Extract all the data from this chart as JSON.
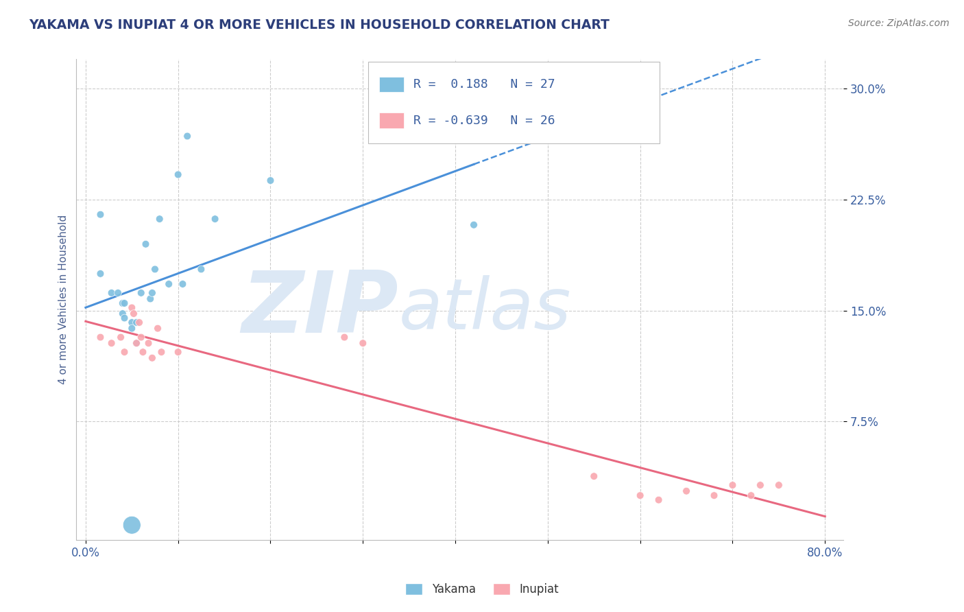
{
  "title": "YAKAMA VS INUPIAT 4 OR MORE VEHICLES IN HOUSEHOLD CORRELATION CHART",
  "source_text": "Source: ZipAtlas.com",
  "ylabel": "4 or more Vehicles in Household",
  "ytick_labels": [
    "7.5%",
    "15.0%",
    "22.5%",
    "30.0%"
  ],
  "ytick_values": [
    0.075,
    0.15,
    0.225,
    0.3
  ],
  "xlim": [
    -0.01,
    0.82
  ],
  "ylim": [
    -0.005,
    0.32
  ],
  "xmin": 0.0,
  "xmax": 0.8,
  "yakama_color": "#7fbfdf",
  "inupiat_color": "#f9a8b0",
  "yakama_line_color": "#4a90d9",
  "inupiat_line_color": "#e86880",
  "yakama_R": 0.188,
  "yakama_N": 27,
  "inupiat_R": -0.639,
  "inupiat_N": 26,
  "yakama_x": [
    0.016,
    0.016,
    0.028,
    0.035,
    0.04,
    0.04,
    0.042,
    0.042,
    0.05,
    0.05,
    0.055,
    0.055,
    0.06,
    0.065,
    0.07,
    0.072,
    0.075,
    0.08,
    0.09,
    0.1,
    0.105,
    0.11,
    0.125,
    0.14,
    0.2,
    0.42,
    0.05
  ],
  "yakama_y": [
    0.215,
    0.175,
    0.162,
    0.162,
    0.155,
    0.148,
    0.155,
    0.145,
    0.142,
    0.138,
    0.142,
    0.128,
    0.162,
    0.195,
    0.158,
    0.162,
    0.178,
    0.212,
    0.168,
    0.242,
    0.168,
    0.268,
    0.178,
    0.212,
    0.238,
    0.208,
    0.005
  ],
  "inupiat_x": [
    0.016,
    0.028,
    0.038,
    0.042,
    0.05,
    0.052,
    0.055,
    0.058,
    0.06,
    0.062,
    0.068,
    0.072,
    0.078,
    0.082,
    0.1,
    0.28,
    0.3,
    0.55,
    0.6,
    0.62,
    0.65,
    0.68,
    0.7,
    0.72,
    0.73,
    0.75
  ],
  "inupiat_y": [
    0.132,
    0.128,
    0.132,
    0.122,
    0.152,
    0.148,
    0.128,
    0.142,
    0.132,
    0.122,
    0.128,
    0.118,
    0.138,
    0.122,
    0.122,
    0.132,
    0.128,
    0.038,
    0.025,
    0.022,
    0.028,
    0.025,
    0.032,
    0.025,
    0.032,
    0.032
  ],
  "yakama_sizes": [
    60,
    60,
    60,
    60,
    60,
    60,
    60,
    60,
    60,
    60,
    60,
    60,
    60,
    60,
    60,
    60,
    60,
    60,
    60,
    60,
    60,
    60,
    60,
    60,
    60,
    60,
    350
  ],
  "inupiat_sizes": [
    60,
    60,
    60,
    60,
    60,
    60,
    60,
    60,
    60,
    60,
    60,
    60,
    60,
    60,
    60,
    60,
    60,
    60,
    60,
    60,
    60,
    60,
    60,
    60,
    60,
    60
  ],
  "background_color": "#ffffff",
  "grid_color": "#cccccc",
  "title_color": "#2c3e7a",
  "axis_label_color": "#4a6090",
  "source_color": "#777777",
  "watermark_zip": "ZIP",
  "watermark_atlas": "atlas",
  "watermark_color": "#dce8f5",
  "legend_color": "#3a5fa0"
}
